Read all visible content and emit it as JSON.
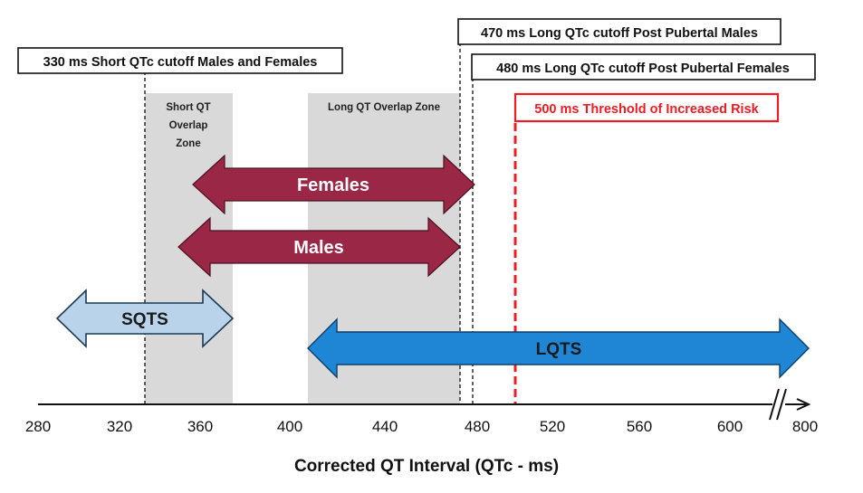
{
  "diagram": {
    "axis": {
      "title": "Corrected QT Interval (QTc - ms)",
      "ticks": [
        "280",
        "320",
        "360",
        "400",
        "440",
        "480",
        "520",
        "560",
        "600",
        "800"
      ],
      "break_symbol": "//"
    },
    "cutoff_labels": {
      "short_qtc": "330 ms Short QTc cutoff  Males and Females",
      "long_qtc_males": "470 ms Long QTc cutoff Post Pubertal Males",
      "long_qtc_females": "480 ms Long QTc cutoff  Post Pubertal Females",
      "threshold": "500 ms Threshold of Increased Risk"
    },
    "zones": {
      "short_qt_overlap": [
        "Short QT",
        "Overlap",
        "Zone"
      ],
      "long_qt_overlap": "Long QT Overlap Zone"
    },
    "ranges": {
      "females": "Females",
      "males": "Males",
      "sqts": "SQTS",
      "lqts": "LQTS"
    },
    "colors": {
      "sex_arrows": "#9b2747",
      "sqts_arrow": "#b9d3ea",
      "lqts_arrow": "#1f86d6",
      "threshold": "#ee1c24",
      "zone_fill": "#d9d9d9"
    }
  }
}
